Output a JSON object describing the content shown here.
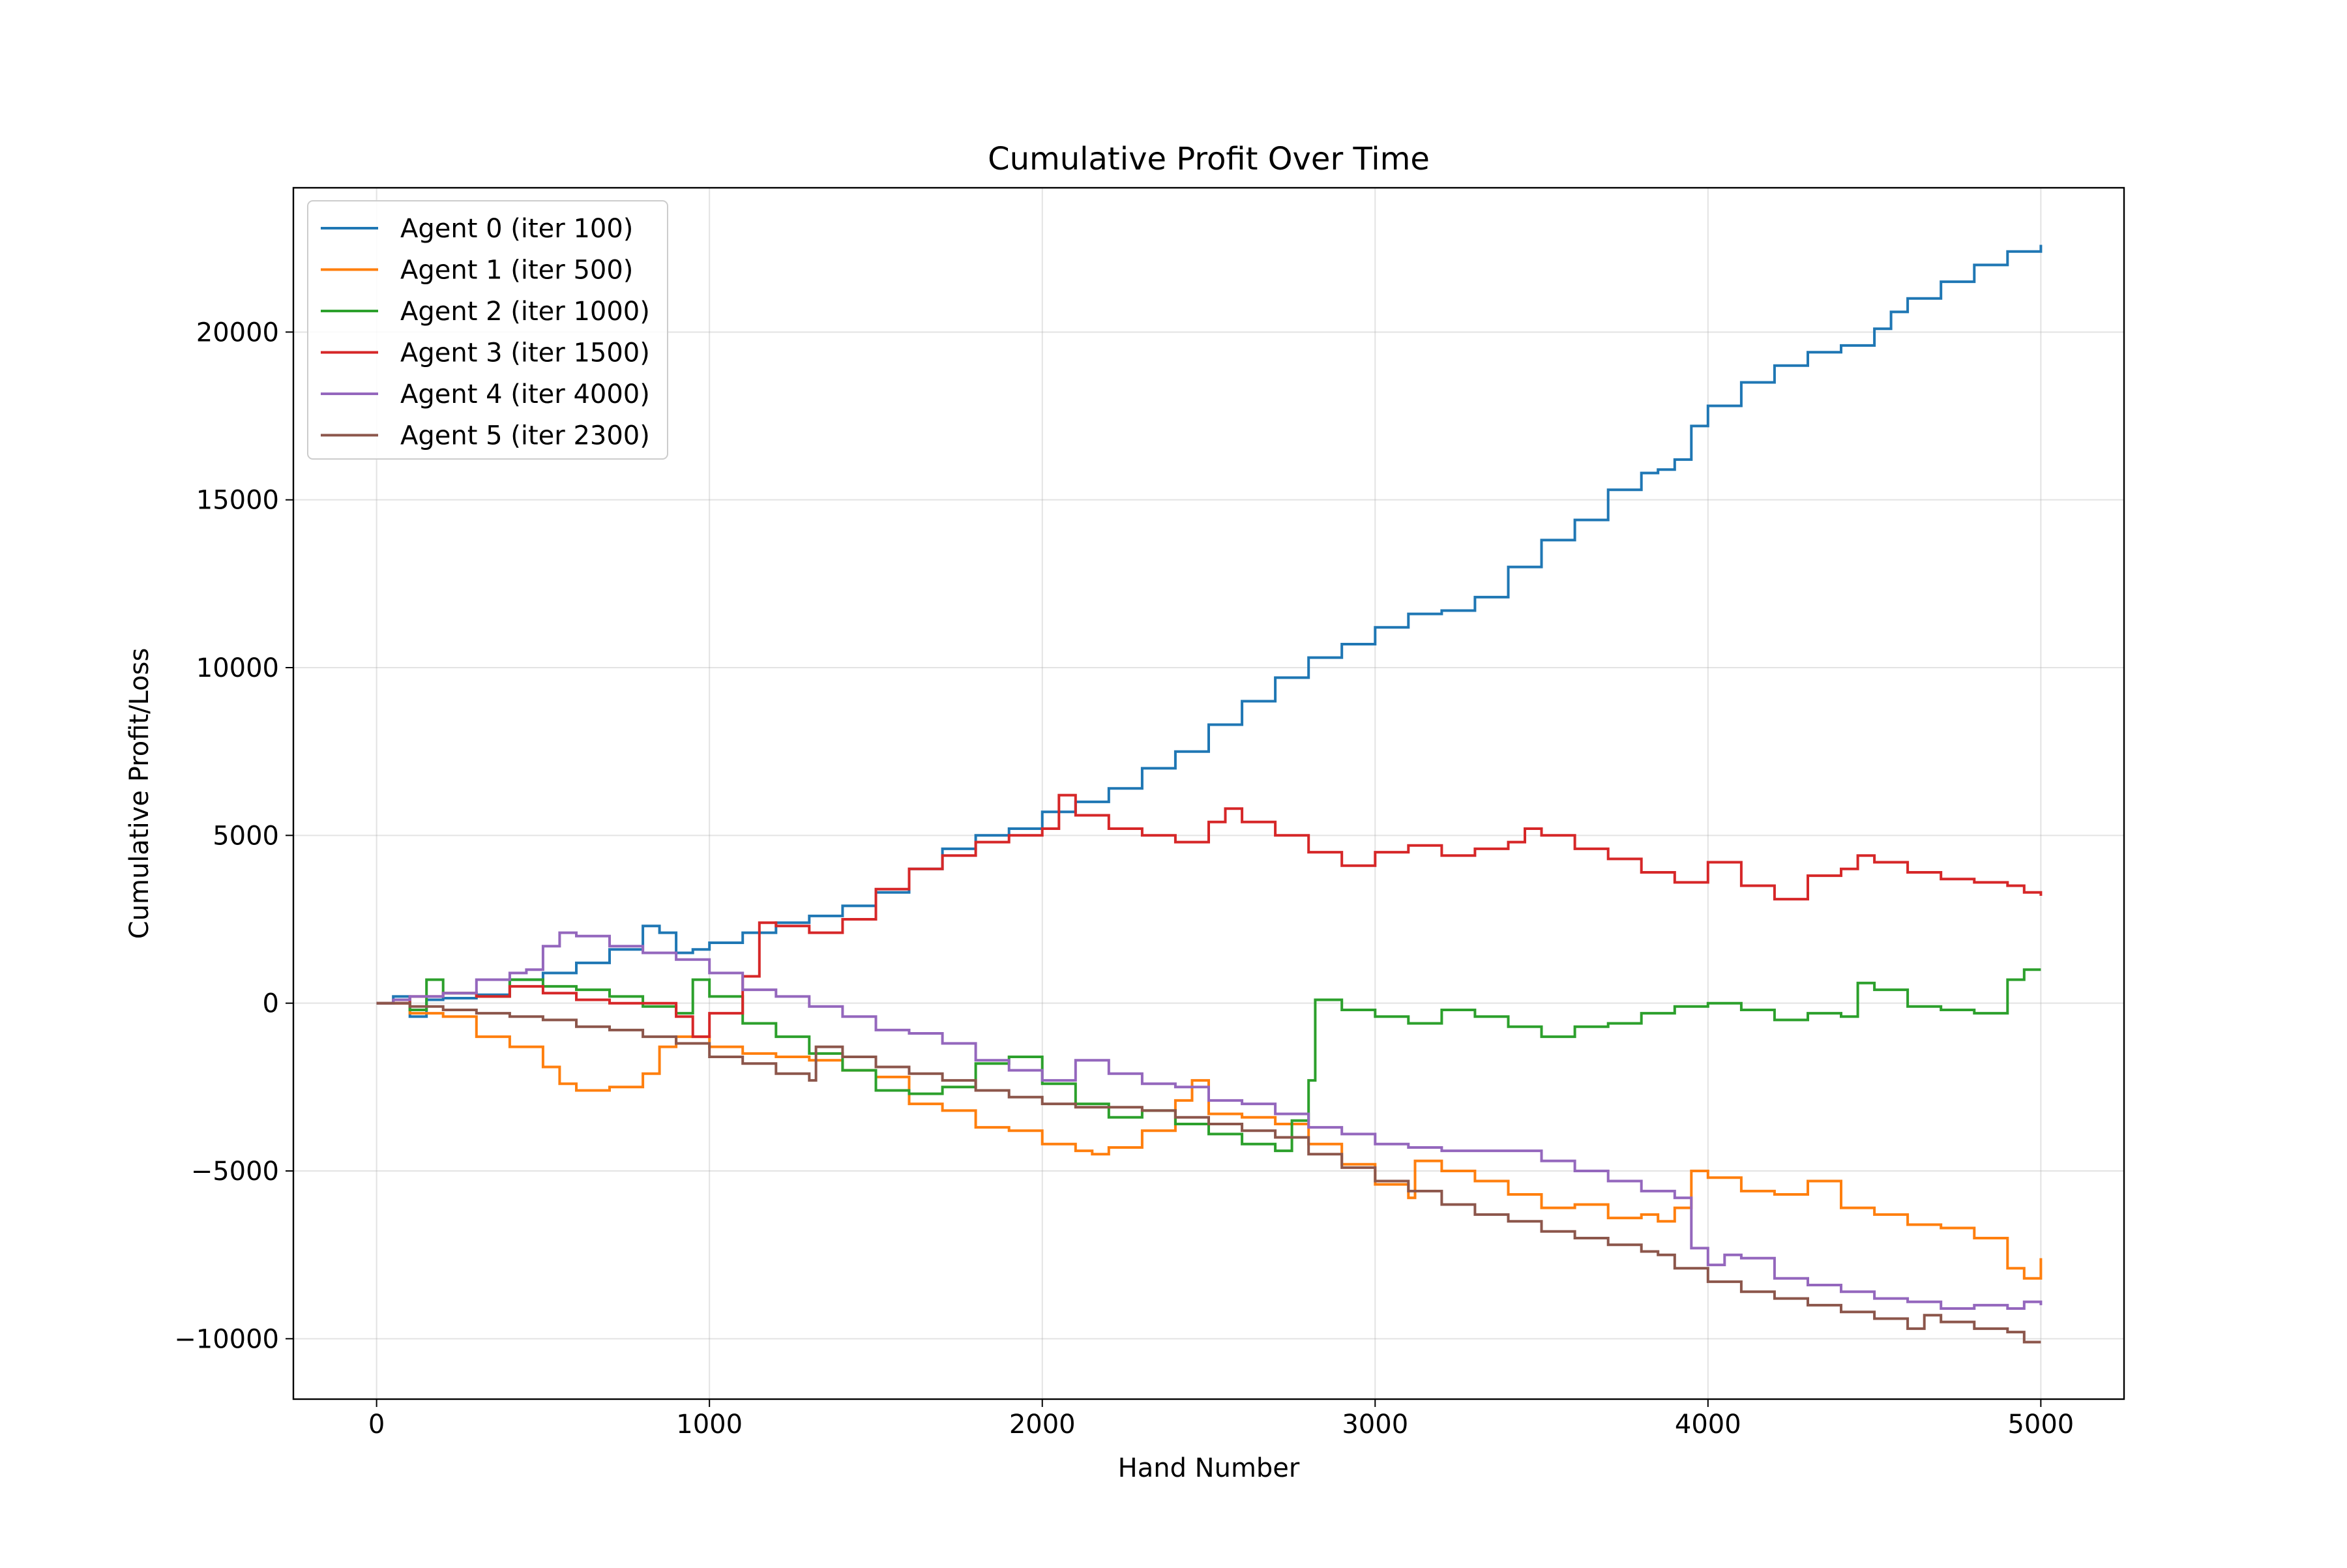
{
  "chart_data": {
    "type": "line",
    "title": "Cumulative Profit Over Time",
    "xlabel": "Hand Number",
    "ylabel": "Cumulative Profit/Loss",
    "xlim": [
      -250,
      5250
    ],
    "ylim": [
      -11800,
      24300
    ],
    "xticks": [
      0,
      1000,
      2000,
      3000,
      4000,
      5000
    ],
    "xtick_labels": [
      "0",
      "1000",
      "2000",
      "3000",
      "4000",
      "5000"
    ],
    "yticks": [
      -10000,
      -5000,
      0,
      5000,
      10000,
      15000,
      20000
    ],
    "ytick_labels": [
      "−10000",
      "−5000",
      "0",
      "5000",
      "10000",
      "15000",
      "20000"
    ],
    "grid": true,
    "legend_position": "top-left",
    "series": [
      {
        "name": "Agent 0 (iter 100)",
        "color": "#1f77b4",
        "x": [
          0,
          50,
          100,
          150,
          200,
          300,
          400,
          500,
          600,
          700,
          800,
          850,
          900,
          950,
          1000,
          1100,
          1200,
          1300,
          1400,
          1500,
          1600,
          1700,
          1800,
          1900,
          2000,
          2100,
          2200,
          2300,
          2400,
          2500,
          2600,
          2700,
          2800,
          2900,
          3000,
          3100,
          3200,
          3250,
          3300,
          3400,
          3500,
          3600,
          3700,
          3800,
          3850,
          3900,
          3950,
          4000,
          4100,
          4200,
          4300,
          4400,
          4500,
          4550,
          4600,
          4700,
          4800,
          4900,
          5000
        ],
        "y": [
          0,
          200,
          -400,
          100,
          150,
          250,
          700,
          900,
          1200,
          1600,
          2300,
          2100,
          1500,
          1600,
          1800,
          2100,
          2400,
          2600,
          2900,
          3300,
          4000,
          4600,
          5000,
          5200,
          5700,
          6000,
          6400,
          7000,
          7500,
          8300,
          9000,
          9700,
          10300,
          10700,
          11200,
          11600,
          11700,
          11700,
          12100,
          13000,
          13800,
          14400,
          15300,
          15800,
          15900,
          16200,
          17200,
          17800,
          18500,
          19000,
          19400,
          19600,
          20100,
          20600,
          21000,
          21500,
          22000,
          22400,
          22600
        ]
      },
      {
        "name": "Agent 1 (iter 500)",
        "color": "#ff7f0e",
        "x": [
          0,
          100,
          200,
          300,
          400,
          500,
          550,
          600,
          700,
          800,
          850,
          900,
          1000,
          1100,
          1200,
          1300,
          1400,
          1500,
          1600,
          1700,
          1800,
          1900,
          2000,
          2100,
          2150,
          2200,
          2300,
          2400,
          2450,
          2500,
          2600,
          2700,
          2800,
          2900,
          3000,
          3100,
          3120,
          3200,
          3300,
          3400,
          3500,
          3600,
          3700,
          3800,
          3850,
          3900,
          3950,
          4000,
          4100,
          4200,
          4300,
          4400,
          4500,
          4600,
          4700,
          4800,
          4900,
          4950,
          5000
        ],
        "y": [
          0,
          -300,
          -400,
          -1000,
          -1300,
          -1900,
          -2400,
          -2600,
          -2500,
          -2100,
          -1300,
          -1000,
          -1300,
          -1500,
          -1600,
          -1700,
          -2000,
          -2200,
          -3000,
          -3200,
          -3700,
          -3800,
          -4200,
          -4400,
          -4500,
          -4300,
          -3800,
          -2900,
          -2300,
          -3300,
          -3400,
          -3600,
          -4200,
          -4800,
          -5400,
          -5800,
          -4700,
          -5000,
          -5300,
          -5700,
          -6100,
          -6000,
          -6400,
          -6300,
          -6500,
          -6100,
          -5000,
          -5200,
          -5600,
          -5700,
          -5300,
          -6100,
          -6300,
          -6600,
          -6700,
          -7000,
          -7900,
          -8200,
          -7600
        ]
      },
      {
        "name": "Agent 2 (iter 1000)",
        "color": "#2ca02c",
        "x": [
          0,
          50,
          100,
          150,
          200,
          300,
          400,
          500,
          600,
          700,
          800,
          900,
          950,
          1000,
          1100,
          1200,
          1300,
          1400,
          1500,
          1600,
          1700,
          1800,
          1900,
          2000,
          2100,
          2200,
          2300,
          2400,
          2500,
          2600,
          2700,
          2750,
          2800,
          2820,
          2900,
          3000,
          3100,
          3200,
          3300,
          3400,
          3500,
          3600,
          3700,
          3800,
          3900,
          4000,
          4100,
          4200,
          4300,
          4400,
          4450,
          4500,
          4600,
          4700,
          4800,
          4900,
          4950,
          5000
        ],
        "y": [
          0,
          100,
          -200,
          700,
          300,
          200,
          700,
          500,
          400,
          200,
          -100,
          -300,
          700,
          200,
          -600,
          -1000,
          -1500,
          -2000,
          -2600,
          -2700,
          -2500,
          -1800,
          -1600,
          -2400,
          -3000,
          -3400,
          -3200,
          -3600,
          -3900,
          -4200,
          -4400,
          -3500,
          -2300,
          100,
          -200,
          -400,
          -600,
          -200,
          -400,
          -700,
          -1000,
          -700,
          -600,
          -300,
          -100,
          0,
          -200,
          -500,
          -300,
          -400,
          600,
          400,
          -100,
          -200,
          -300,
          700,
          1000,
          1000
        ]
      },
      {
        "name": "Agent 3 (iter 1500)",
        "color": "#d62728",
        "x": [
          0,
          100,
          200,
          300,
          400,
          500,
          600,
          700,
          800,
          900,
          950,
          1000,
          1100,
          1150,
          1200,
          1300,
          1400,
          1500,
          1600,
          1700,
          1800,
          1900,
          2000,
          2050,
          2100,
          2200,
          2300,
          2400,
          2500,
          2550,
          2600,
          2700,
          2800,
          2900,
          3000,
          3100,
          3200,
          3300,
          3400,
          3450,
          3500,
          3600,
          3700,
          3800,
          3900,
          4000,
          4100,
          4200,
          4300,
          4400,
          4450,
          4500,
          4600,
          4700,
          4800,
          4900,
          4950,
          5000
        ],
        "y": [
          0,
          200,
          300,
          200,
          500,
          300,
          100,
          0,
          0,
          -400,
          -1000,
          -300,
          800,
          2400,
          2300,
          2100,
          2500,
          3400,
          4000,
          4400,
          4800,
          5000,
          5200,
          6200,
          5600,
          5200,
          5000,
          4800,
          5400,
          5800,
          5400,
          5000,
          4500,
          4100,
          4500,
          4700,
          4400,
          4600,
          4800,
          5200,
          5000,
          4600,
          4300,
          3900,
          3600,
          4200,
          3500,
          3100,
          3800,
          4000,
          4400,
          4200,
          3900,
          3700,
          3600,
          3500,
          3300,
          3200
        ]
      },
      {
        "name": "Agent 4 (iter 4000)",
        "color": "#9467bd",
        "x": [
          0,
          50,
          100,
          200,
          300,
          400,
          450,
          500,
          550,
          600,
          700,
          800,
          900,
          1000,
          1100,
          1200,
          1300,
          1400,
          1500,
          1600,
          1700,
          1800,
          1900,
          2000,
          2100,
          2200,
          2300,
          2400,
          2500,
          2600,
          2700,
          2800,
          2900,
          3000,
          3100,
          3200,
          3300,
          3400,
          3500,
          3600,
          3700,
          3800,
          3900,
          3950,
          4000,
          4050,
          4100,
          4200,
          4300,
          4400,
          4500,
          4600,
          4700,
          4800,
          4900,
          4950,
          5000
        ],
        "y": [
          0,
          100,
          200,
          300,
          700,
          900,
          1000,
          1700,
          2100,
          2000,
          1700,
          1500,
          1300,
          900,
          400,
          200,
          -100,
          -400,
          -800,
          -900,
          -1200,
          -1700,
          -2000,
          -2300,
          -1700,
          -2100,
          -2400,
          -2500,
          -2900,
          -3000,
          -3300,
          -3700,
          -3900,
          -4200,
          -4300,
          -4400,
          -4400,
          -4400,
          -4700,
          -5000,
          -5300,
          -5600,
          -5800,
          -7300,
          -7800,
          -7500,
          -7600,
          -8200,
          -8400,
          -8600,
          -8800,
          -8900,
          -9100,
          -9000,
          -9100,
          -8900,
          -9000
        ]
      },
      {
        "name": "Agent 5 (iter 2300)",
        "color": "#8c564b",
        "x": [
          0,
          100,
          200,
          300,
          400,
          500,
          600,
          700,
          800,
          900,
          1000,
          1100,
          1200,
          1300,
          1320,
          1400,
          1500,
          1600,
          1700,
          1800,
          1900,
          2000,
          2100,
          2200,
          2300,
          2400,
          2500,
          2600,
          2700,
          2800,
          2900,
          3000,
          3100,
          3200,
          3300,
          3400,
          3500,
          3600,
          3700,
          3800,
          3850,
          3900,
          4000,
          4100,
          4200,
          4300,
          4400,
          4500,
          4600,
          4650,
          4700,
          4800,
          4900,
          4950,
          5000
        ],
        "y": [
          0,
          -100,
          -200,
          -300,
          -400,
          -500,
          -700,
          -800,
          -1000,
          -1200,
          -1600,
          -1800,
          -2100,
          -2300,
          -1300,
          -1600,
          -1900,
          -2100,
          -2300,
          -2600,
          -2800,
          -3000,
          -3100,
          -3100,
          -3200,
          -3400,
          -3600,
          -3800,
          -4000,
          -4500,
          -4900,
          -5300,
          -5600,
          -6000,
          -6300,
          -6500,
          -6800,
          -7000,
          -7200,
          -7400,
          -7500,
          -7900,
          -8300,
          -8600,
          -8800,
          -9000,
          -9200,
          -9400,
          -9700,
          -9300,
          -9500,
          -9700,
          -9800,
          -10100,
          -10100
        ]
      }
    ]
  }
}
